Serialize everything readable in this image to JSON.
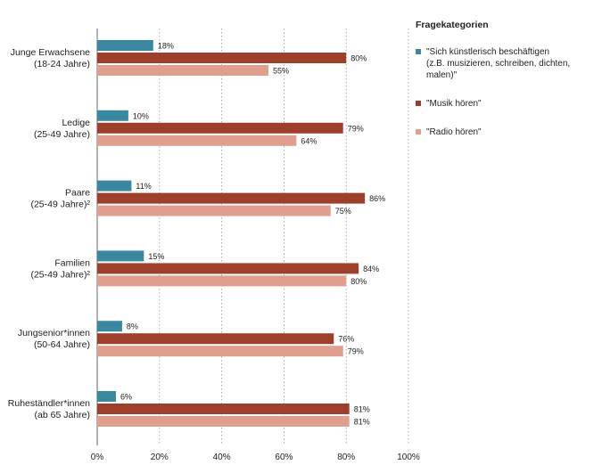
{
  "chart_data": {
    "type": "bar",
    "orientation": "horizontal",
    "categories": [
      "Junge Erwachsene\n(18-24 Jahre)",
      "Ledige\n(25-49 Jahre)",
      "Paare\n(25-49 Jahre)²",
      "Familien\n(25-49 Jahre)²",
      "Jungsenior*innen\n(50-64 Jahre)",
      "Ruheständler*innen\n(ab 65 Jahre)"
    ],
    "series": [
      {
        "name": "\"Sich künstlerisch beschäftigen\n(z.B. musizieren, schreiben, dichten, malen)\"",
        "color": "#3a87a0",
        "values": [
          18,
          10,
          11,
          15,
          8,
          6
        ]
      },
      {
        "name": "\"Musik hören\"",
        "color": "#9e3f2c",
        "values": [
          80,
          79,
          86,
          84,
          76,
          81
        ]
      },
      {
        "name": "\"Radio hören\"",
        "color": "#e09e8f",
        "values": [
          55,
          64,
          75,
          80,
          79,
          81
        ]
      }
    ],
    "value_suffix": "%",
    "xlim": [
      0,
      100
    ],
    "xticks": [
      0,
      20,
      40,
      60,
      80,
      100
    ],
    "xtick_labels": [
      "0%",
      "20%",
      "40%",
      "60%",
      "80%",
      "100%"
    ],
    "grid": "vertical dotted",
    "legend_title": "Fragekategorien",
    "legend_position": "top-right"
  }
}
